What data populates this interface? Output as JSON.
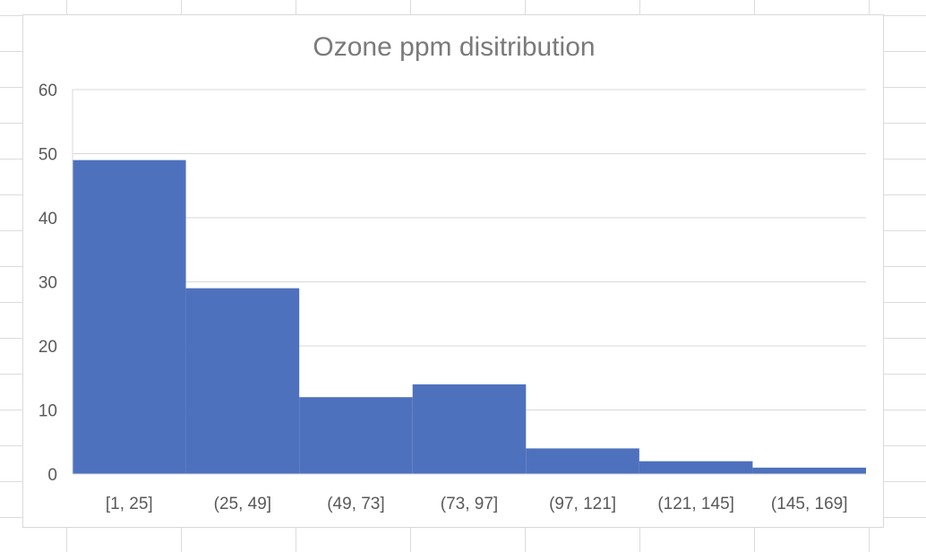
{
  "chart_data": {
    "type": "bar",
    "title": "Ozone ppm disitribution",
    "xlabel": "",
    "ylabel": "",
    "categories": [
      "[1, 25]",
      "(25, 49]",
      "(49, 73]",
      "(73, 97]",
      "(97, 121]",
      "(121, 145]",
      "(145, 169]"
    ],
    "values": [
      49,
      29,
      12,
      14,
      4,
      2,
      1
    ],
    "ylim": [
      0,
      60
    ],
    "yticks": [
      "0",
      "10",
      "20",
      "30",
      "40",
      "50",
      "60"
    ],
    "grid": true,
    "legend": "none",
    "bar_color": "#4e71be",
    "gap_width": 0
  }
}
